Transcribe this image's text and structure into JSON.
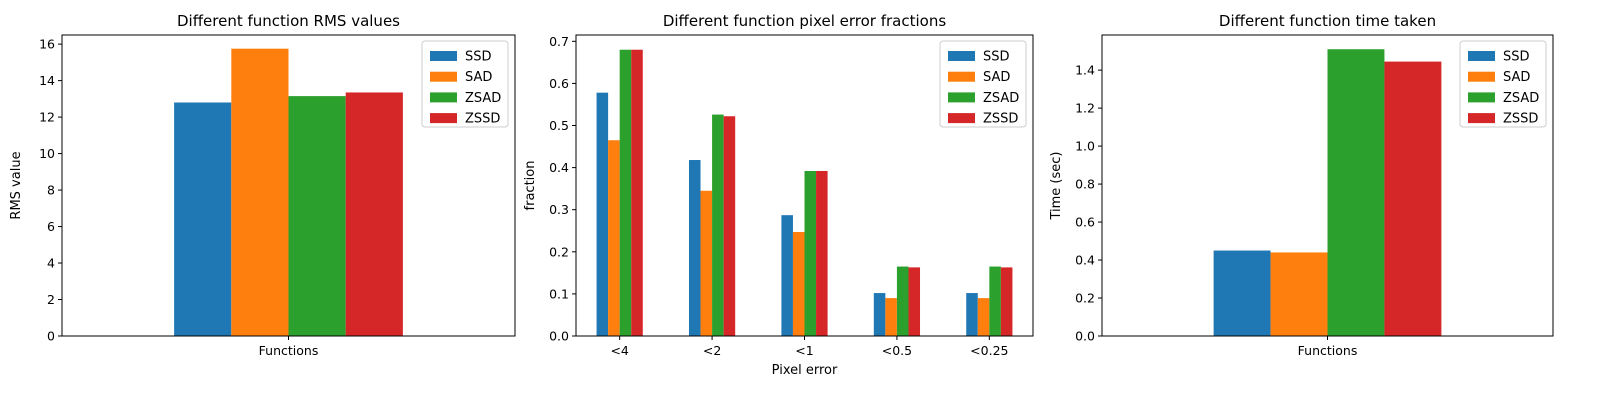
{
  "chart_data": [
    {
      "type": "bar",
      "title": "Different function RMS values",
      "xlabel": "",
      "ylabel": "RMS value",
      "categories": [
        "Functions"
      ],
      "ylim": [
        0,
        16.5
      ],
      "yticks": [
        0,
        2,
        4,
        6,
        8,
        10,
        12,
        14,
        16
      ],
      "legend": "top-right",
      "grid": false,
      "series": [
        {
          "name": "SSD",
          "values": [
            12.8
          ]
        },
        {
          "name": "SAD",
          "values": [
            15.75
          ]
        },
        {
          "name": "ZSAD",
          "values": [
            13.15
          ]
        },
        {
          "name": "ZSSD",
          "values": [
            13.35
          ]
        }
      ]
    },
    {
      "type": "bar",
      "title": "Different function pixel error fractions",
      "xlabel": "Pixel error",
      "ylabel": "fraction",
      "categories": [
        "<4",
        "<2",
        "<1",
        "<0.5",
        "<0.25"
      ],
      "ylim": [
        0,
        0.715
      ],
      "yticks": [
        0.0,
        0.1,
        0.2,
        0.3,
        0.4,
        0.5,
        0.6,
        0.7
      ],
      "legend": "top-right",
      "grid": false,
      "series": [
        {
          "name": "SSD",
          "values": [
            0.578,
            0.418,
            0.287,
            0.102,
            0.102
          ]
        },
        {
          "name": "SAD",
          "values": [
            0.465,
            0.345,
            0.247,
            0.09,
            0.09
          ]
        },
        {
          "name": "ZSAD",
          "values": [
            0.68,
            0.526,
            0.392,
            0.165,
            0.165
          ]
        },
        {
          "name": "ZSSD",
          "values": [
            0.68,
            0.522,
            0.392,
            0.163,
            0.163
          ]
        }
      ]
    },
    {
      "type": "bar",
      "title": "Different function time taken",
      "xlabel": "",
      "ylabel": "Time (sec)",
      "categories": [
        "Functions"
      ],
      "ylim": [
        0,
        1.585
      ],
      "yticks": [
        0.0,
        0.2,
        0.4,
        0.6,
        0.8,
        1.0,
        1.2,
        1.4
      ],
      "legend": "top-right",
      "grid": false,
      "series": [
        {
          "name": "SSD",
          "values": [
            0.45
          ]
        },
        {
          "name": "SAD",
          "values": [
            0.44
          ]
        },
        {
          "name": "ZSAD",
          "values": [
            1.51
          ]
        },
        {
          "name": "ZSSD",
          "values": [
            1.445
          ]
        }
      ]
    }
  ],
  "colors": {
    "SSD": "#1f77b4",
    "SAD": "#ff7f0e",
    "ZSAD": "#2ca02c",
    "ZSSD": "#d62728"
  }
}
